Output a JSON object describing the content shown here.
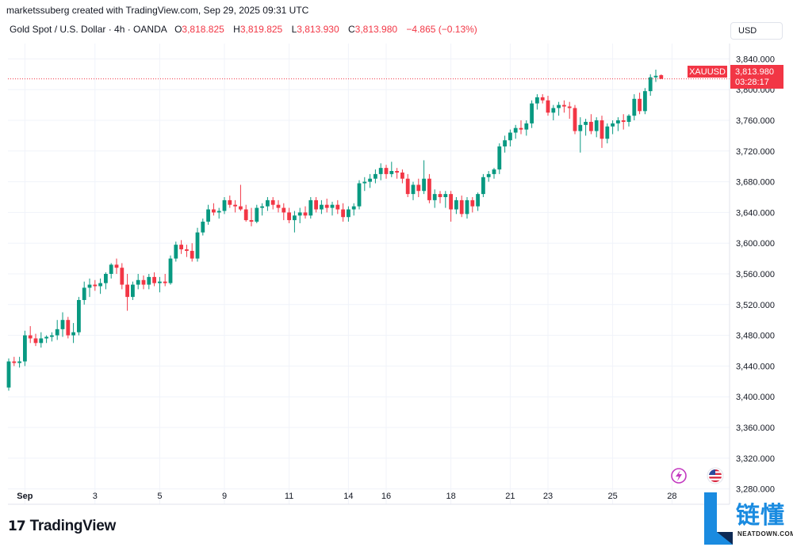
{
  "header": {
    "author_line": "marketssuberg created with TradingView.com, Sep 29, 2025 09:31 UTC",
    "symbol_desc": "Gold Spot / U.S. Dollar · 4h · OANDA",
    "ohlc": {
      "o_label": "O",
      "o_value": "3,818.825",
      "h_label": "H",
      "h_value": "3,819.825",
      "l_label": "L",
      "l_value": "3,813.930",
      "c_label": "C",
      "c_value": "3,813.980",
      "change": "−4.865 (−0.13%)"
    },
    "currency_button": "USD"
  },
  "price_tag": {
    "symbol": "XAUUSD",
    "price": "3,813.980",
    "countdown": "03:28:17"
  },
  "footer": {
    "brand": "TradingView"
  },
  "watermark": {
    "cn": "链懂",
    "en": "NEATDOWN.COM"
  },
  "colors": {
    "up": "#089981",
    "down": "#f23645",
    "grid": "#f0f3fa",
    "text": "#131722"
  },
  "icons": [
    "lightning-icon",
    "us-flag-icon"
  ],
  "chart_data": {
    "type": "candlestick",
    "title": "Gold Spot / U.S. Dollar · 4h · OANDA",
    "ylim": [
      3260,
      3860
    ],
    "y_ticks": [
      "3,280.000",
      "3,320.000",
      "3,360.000",
      "3,400.000",
      "3,440.000",
      "3,480.000",
      "3,520.000",
      "3,560.000",
      "3,600.000",
      "3,640.000",
      "3,680.000",
      "3,720.000",
      "3,760.000",
      "3,800.000",
      "3,840.000"
    ],
    "y_tick_values": [
      3280,
      3320,
      3360,
      3400,
      3440,
      3480,
      3520,
      3560,
      3600,
      3640,
      3680,
      3720,
      3760,
      3800,
      3840
    ],
    "x_ticks": [
      {
        "label": "Sep",
        "bar": 3
      },
      {
        "label": "3",
        "bar": 16
      },
      {
        "label": "5",
        "bar": 28
      },
      {
        "label": "9",
        "bar": 40
      },
      {
        "label": "11",
        "bar": 52
      },
      {
        "label": "14",
        "bar": 63
      },
      {
        "label": "16",
        "bar": 70
      },
      {
        "label": "18",
        "bar": 82
      },
      {
        "label": "21",
        "bar": 93
      },
      {
        "label": "23",
        "bar": 100
      },
      {
        "label": "25",
        "bar": 112
      },
      {
        "label": "28",
        "bar": 123
      }
    ],
    "last_price": 3813.98,
    "grid": true,
    "candles": [
      [
        3412,
        3450,
        3408,
        3446
      ],
      [
        3446,
        3452,
        3440,
        3444
      ],
      [
        3444,
        3452,
        3438,
        3446
      ],
      [
        3446,
        3486,
        3440,
        3480
      ],
      [
        3480,
        3492,
        3470,
        3476
      ],
      [
        3476,
        3482,
        3466,
        3470
      ],
      [
        3470,
        3484,
        3464,
        3476
      ],
      [
        3476,
        3480,
        3470,
        3478
      ],
      [
        3478,
        3484,
        3472,
        3480
      ],
      [
        3480,
        3500,
        3474,
        3488
      ],
      [
        3488,
        3510,
        3478,
        3500
      ],
      [
        3500,
        3504,
        3476,
        3480
      ],
      [
        3480,
        3496,
        3470,
        3484
      ],
      [
        3484,
        3530,
        3480,
        3526
      ],
      [
        3526,
        3550,
        3520,
        3542
      ],
      [
        3542,
        3554,
        3530,
        3546
      ],
      [
        3546,
        3552,
        3538,
        3544
      ],
      [
        3544,
        3554,
        3534,
        3548
      ],
      [
        3548,
        3562,
        3540,
        3560
      ],
      [
        3560,
        3574,
        3554,
        3572
      ],
      [
        3572,
        3580,
        3560,
        3568
      ],
      [
        3568,
        3574,
        3540,
        3546
      ],
      [
        3546,
        3560,
        3512,
        3530
      ],
      [
        3530,
        3550,
        3526,
        3546
      ],
      [
        3546,
        3560,
        3540,
        3552
      ],
      [
        3552,
        3558,
        3540,
        3546
      ],
      [
        3546,
        3560,
        3540,
        3556
      ],
      [
        3556,
        3562,
        3544,
        3548
      ],
      [
        3548,
        3556,
        3536,
        3550
      ],
      [
        3550,
        3560,
        3544,
        3548
      ],
      [
        3548,
        3584,
        3546,
        3580
      ],
      [
        3580,
        3602,
        3576,
        3598
      ],
      [
        3598,
        3604,
        3586,
        3592
      ],
      [
        3592,
        3598,
        3582,
        3590
      ],
      [
        3590,
        3600,
        3576,
        3580
      ],
      [
        3580,
        3620,
        3576,
        3614
      ],
      [
        3614,
        3632,
        3610,
        3628
      ],
      [
        3628,
        3650,
        3624,
        3644
      ],
      [
        3644,
        3652,
        3636,
        3640
      ],
      [
        3640,
        3646,
        3632,
        3642
      ],
      [
        3642,
        3660,
        3638,
        3656
      ],
      [
        3656,
        3662,
        3646,
        3650
      ],
      [
        3650,
        3656,
        3640,
        3648
      ],
      [
        3648,
        3676,
        3642,
        3644
      ],
      [
        3644,
        3650,
        3628,
        3630
      ],
      [
        3630,
        3646,
        3622,
        3628
      ],
      [
        3628,
        3650,
        3626,
        3646
      ],
      [
        3646,
        3652,
        3636,
        3648
      ],
      [
        3648,
        3660,
        3642,
        3656
      ],
      [
        3656,
        3660,
        3644,
        3650
      ],
      [
        3650,
        3656,
        3640,
        3646
      ],
      [
        3646,
        3652,
        3630,
        3640
      ],
      [
        3640,
        3646,
        3626,
        3630
      ],
      [
        3630,
        3642,
        3614,
        3636
      ],
      [
        3636,
        3646,
        3626,
        3640
      ],
      [
        3640,
        3648,
        3632,
        3636
      ],
      [
        3636,
        3660,
        3632,
        3656
      ],
      [
        3656,
        3660,
        3640,
        3644
      ],
      [
        3644,
        3656,
        3638,
        3650
      ],
      [
        3650,
        3658,
        3640,
        3646
      ],
      [
        3646,
        3654,
        3636,
        3650
      ],
      [
        3650,
        3656,
        3638,
        3644
      ],
      [
        3644,
        3652,
        3628,
        3634
      ],
      [
        3634,
        3648,
        3628,
        3644
      ],
      [
        3644,
        3652,
        3636,
        3648
      ],
      [
        3648,
        3682,
        3644,
        3678
      ],
      [
        3678,
        3686,
        3668,
        3680
      ],
      [
        3680,
        3690,
        3672,
        3684
      ],
      [
        3684,
        3696,
        3678,
        3690
      ],
      [
        3690,
        3704,
        3682,
        3698
      ],
      [
        3698,
        3702,
        3684,
        3690
      ],
      [
        3690,
        3706,
        3686,
        3694
      ],
      [
        3694,
        3698,
        3684,
        3692
      ],
      [
        3692,
        3696,
        3678,
        3684
      ],
      [
        3684,
        3690,
        3660,
        3664
      ],
      [
        3664,
        3680,
        3656,
        3676
      ],
      [
        3676,
        3684,
        3660,
        3668
      ],
      [
        3668,
        3708,
        3664,
        3684
      ],
      [
        3684,
        3690,
        3652,
        3656
      ],
      [
        3656,
        3670,
        3646,
        3664
      ],
      [
        3664,
        3668,
        3652,
        3660
      ],
      [
        3660,
        3668,
        3646,
        3664
      ],
      [
        3664,
        3668,
        3628,
        3644
      ],
      [
        3644,
        3660,
        3638,
        3656
      ],
      [
        3656,
        3662,
        3634,
        3638
      ],
      [
        3638,
        3660,
        3632,
        3656
      ],
      [
        3656,
        3660,
        3640,
        3648
      ],
      [
        3648,
        3666,
        3642,
        3664
      ],
      [
        3664,
        3690,
        3660,
        3686
      ],
      [
        3686,
        3694,
        3680,
        3690
      ],
      [
        3690,
        3698,
        3684,
        3696
      ],
      [
        3696,
        3730,
        3690,
        3726
      ],
      [
        3726,
        3740,
        3718,
        3734
      ],
      [
        3734,
        3748,
        3726,
        3744
      ],
      [
        3744,
        3754,
        3736,
        3750
      ],
      [
        3750,
        3760,
        3742,
        3748
      ],
      [
        3748,
        3760,
        3740,
        3756
      ],
      [
        3756,
        3786,
        3750,
        3782
      ],
      [
        3782,
        3794,
        3774,
        3790
      ],
      [
        3790,
        3794,
        3782,
        3786
      ],
      [
        3786,
        3792,
        3766,
        3770
      ],
      [
        3770,
        3780,
        3760,
        3776
      ],
      [
        3776,
        3784,
        3766,
        3780
      ],
      [
        3780,
        3786,
        3770,
        3778
      ],
      [
        3778,
        3784,
        3762,
        3776
      ],
      [
        3776,
        3780,
        3742,
        3746
      ],
      [
        3746,
        3764,
        3718,
        3754
      ],
      [
        3754,
        3762,
        3740,
        3758
      ],
      [
        3758,
        3768,
        3742,
        3746
      ],
      [
        3746,
        3764,
        3738,
        3760
      ],
      [
        3760,
        3766,
        3724,
        3736
      ],
      [
        3736,
        3756,
        3730,
        3752
      ],
      [
        3752,
        3760,
        3742,
        3756
      ],
      [
        3756,
        3764,
        3746,
        3760
      ],
      [
        3760,
        3768,
        3748,
        3758
      ],
      [
        3758,
        3768,
        3752,
        3766
      ],
      [
        3766,
        3794,
        3760,
        3788
      ],
      [
        3788,
        3796,
        3768,
        3772
      ],
      [
        3772,
        3802,
        3768,
        3798
      ],
      [
        3798,
        3820,
        3792,
        3816
      ],
      [
        3816,
        3826,
        3810,
        3818
      ],
      [
        3818.825,
        3819.825,
        3813.93,
        3813.98
      ]
    ]
  }
}
